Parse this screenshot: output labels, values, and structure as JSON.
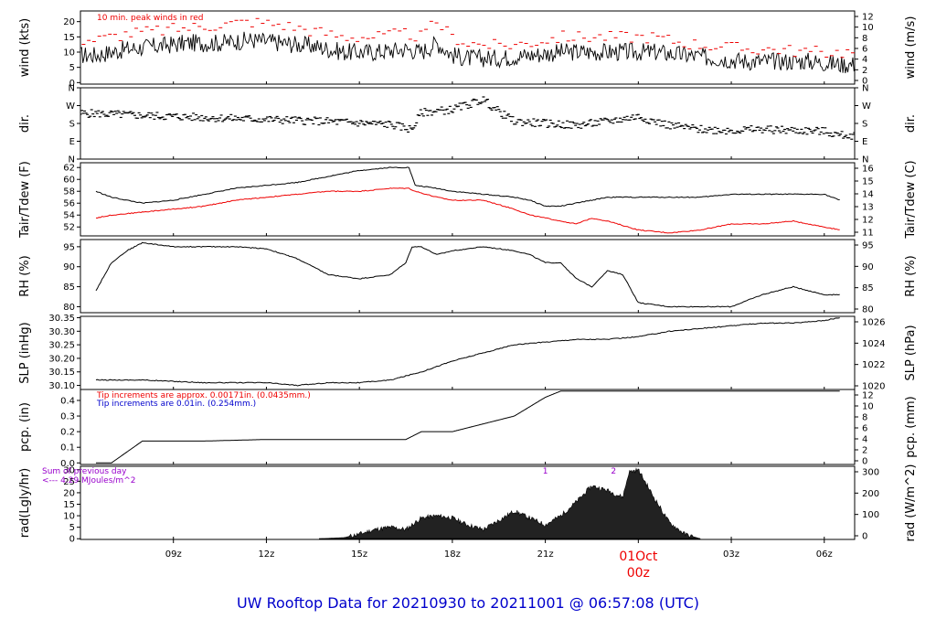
{
  "footer_title": "UW Rooftop Data for 20210930  to  20211001 @ 06:57:08  (UTC)",
  "colors": {
    "footer": "#0000cc",
    "red": "#ee0000",
    "blue": "#0000cc",
    "purple": "#9900cc",
    "line": "#000000"
  },
  "chart_data": [
    {
      "type": "line",
      "id": "wind",
      "ylabel": "wind (kts)",
      "ylabel_right": "wind (m/s)",
      "yticks": [
        0,
        5,
        10,
        15,
        20
      ],
      "yticks_right": [
        0,
        2,
        4,
        6,
        8,
        10,
        12
      ],
      "ylim": [
        -0.5,
        23.5
      ],
      "annotation": "10 min. peak winds in red",
      "x": [
        6.5,
        7.5,
        8.5,
        9.5,
        10.5,
        11.5,
        12.5,
        13.5,
        14.5,
        15.5,
        16.5,
        17,
        17.5,
        18,
        18.5,
        19.5,
        20.5,
        21.5,
        22.5,
        23.5,
        24.5,
        25.5,
        26.5,
        27.5,
        28.5,
        29.5,
        30.5
      ],
      "series": [
        {
          "values": [
            9,
            11,
            12,
            13,
            13,
            14,
            13,
            12,
            10,
            10,
            11,
            10,
            13,
            9,
            8,
            8,
            9,
            10,
            10,
            10,
            10,
            9,
            8,
            7,
            7,
            7,
            6
          ]
        },
        {
          "values": [
            14,
            16,
            17,
            18,
            19,
            20,
            19,
            17,
            15,
            15,
            16,
            15,
            20,
            15,
            13,
            12,
            13,
            15,
            15,
            15,
            15,
            13,
            12,
            11,
            11,
            10,
            10
          ]
        }
      ]
    },
    {
      "type": "scatter",
      "id": "dir",
      "ylabel": "dir.",
      "ylabel_right": "dir.",
      "ytick_labels": [
        "N",
        "E",
        "S",
        "W",
        "N"
      ],
      "ytick_values": [
        0,
        90,
        180,
        270,
        360
      ],
      "ylim": [
        0,
        360
      ],
      "x": [
        6.5,
        8,
        10,
        12,
        14,
        16,
        16.7,
        17,
        18,
        18.8,
        19,
        19.5,
        20,
        21,
        22,
        23,
        24,
        25,
        26,
        27,
        28,
        29,
        30,
        30.5
      ],
      "series": [
        {
          "values": [
            230,
            220,
            210,
            200,
            190,
            175,
            150,
            235,
            250,
            290,
            300,
            240,
            190,
            180,
            170,
            190,
            215,
            170,
            150,
            145,
            150,
            145,
            140,
            120
          ]
        }
      ]
    },
    {
      "type": "line",
      "id": "temp",
      "ylabel": "Tair/Tdew (F)",
      "ylabel_right": "Tair/Tdew (C)",
      "yticks": [
        52,
        54,
        56,
        58,
        60,
        62
      ],
      "yticks_right": [
        11,
        12,
        13,
        14,
        15,
        16
      ],
      "ylim": [
        50.5,
        62.8
      ],
      "x": [
        6.5,
        7,
        8,
        9,
        10,
        11,
        12,
        13,
        14,
        15,
        16,
        16.6,
        16.8,
        17.5,
        18,
        19,
        20,
        20.5,
        21,
        21.5,
        22,
        22.5,
        23,
        24,
        25,
        26,
        27,
        28,
        29,
        30,
        30.5
      ],
      "series": [
        {
          "values": [
            58,
            57,
            56,
            56.5,
            57.5,
            58.5,
            59,
            59.5,
            60.5,
            61.5,
            62,
            62,
            59,
            58.5,
            58,
            57.5,
            57,
            56.5,
            55.5,
            55.5,
            56,
            56.5,
            57,
            57,
            57,
            57,
            57.5,
            57.5,
            57.5,
            57.5,
            56.5
          ],
          "color": "#000000"
        },
        {
          "values": [
            53.5,
            54,
            54.5,
            55,
            55.5,
            56.5,
            57,
            57.5,
            58,
            58,
            58.5,
            58.5,
            58,
            57,
            56.5,
            56.5,
            55,
            54,
            53.5,
            53,
            52.5,
            53.5,
            53,
            51.5,
            51,
            51.5,
            52.5,
            52.5,
            53,
            52,
            51.5
          ],
          "color": "#ee0000"
        }
      ]
    },
    {
      "type": "line",
      "id": "rh",
      "ylabel": "RH (%)",
      "ylabel_right": "RH (%)",
      "yticks": [
        80,
        85,
        90,
        95
      ],
      "yticks_right": [
        80,
        85,
        90,
        95
      ],
      "ylim": [
        78.5,
        96.8
      ],
      "x": [
        6.5,
        7,
        7.5,
        8,
        9,
        10,
        11,
        12,
        13,
        14,
        15,
        16,
        16.5,
        16.7,
        17,
        17.5,
        18,
        19,
        20,
        20.5,
        21,
        21.5,
        22,
        22.5,
        23,
        23.5,
        24,
        25,
        26,
        27,
        28,
        29,
        30,
        30.5
      ],
      "series": [
        {
          "values": [
            84,
            91,
            94,
            96,
            95,
            95,
            95,
            94.5,
            92,
            88,
            87,
            88,
            91,
            95,
            95,
            93,
            94,
            95,
            94,
            93,
            91,
            91,
            87,
            85,
            89,
            88,
            81,
            80,
            80,
            80,
            83,
            85,
            83,
            83
          ]
        }
      ]
    },
    {
      "type": "line",
      "id": "slp",
      "ylabel": "SLP (inHg)",
      "ylabel_right": "SLP (hPa)",
      "yticks": [
        30.1,
        30.15,
        30.2,
        30.25,
        30.3,
        30.35
      ],
      "ytick_labels": [
        "30.10",
        "30.15",
        "30.20",
        "30.25",
        "30.30",
        "30.35"
      ],
      "yticks_right": [
        1020,
        1022,
        1024,
        1026
      ],
      "ylim": [
        30.085,
        30.355
      ],
      "x": [
        6.5,
        8,
        10,
        12,
        13,
        14,
        15,
        16,
        17,
        18,
        19,
        20,
        21,
        22,
        23,
        24,
        25,
        26,
        27,
        28,
        29,
        30,
        30.5
      ],
      "series": [
        {
          "values": [
            30.12,
            30.12,
            30.11,
            30.11,
            30.1,
            30.11,
            30.11,
            30.12,
            30.15,
            30.19,
            30.22,
            30.25,
            30.26,
            30.27,
            30.27,
            30.28,
            30.3,
            30.31,
            30.32,
            30.33,
            30.33,
            30.34,
            30.35
          ]
        }
      ]
    },
    {
      "type": "line",
      "id": "pcp",
      "ylabel": "pcp. (in)",
      "ylabel_right": "pcp. (mm)",
      "yticks": [
        0.0,
        0.1,
        0.2,
        0.3,
        0.4
      ],
      "ytick_labels": [
        "0.0",
        "0.1",
        "0.2",
        "0.3",
        "0.4"
      ],
      "yticks_right": [
        0,
        2,
        4,
        6,
        8,
        10,
        12
      ],
      "ylim": [
        -0.01,
        0.47
      ],
      "annotations": [
        "Tip increments are approx. 0.00171in. (0.0435mm.)",
        "Tip increments are 0.01in. (0.254mm.)"
      ],
      "x": [
        6.5,
        7,
        8,
        10,
        12,
        14,
        16,
        16.5,
        17,
        18,
        19,
        20,
        21,
        21.5,
        22,
        30.5
      ],
      "series": [
        {
          "values": [
            0.0,
            0.0,
            0.14,
            0.14,
            0.15,
            0.15,
            0.15,
            0.15,
            0.2,
            0.2,
            0.25,
            0.3,
            0.42,
            0.46,
            0.46,
            0.46
          ]
        }
      ]
    },
    {
      "type": "area",
      "id": "rad",
      "ylabel": "rad(Lgly/hr)",
      "ylabel_right": "rad (W/m^2)",
      "yticks": [
        0,
        5,
        10,
        15,
        20,
        25,
        30
      ],
      "yticks_right": [
        0,
        100,
        200,
        300
      ],
      "ylim": [
        -0.3,
        31.5
      ],
      "annotations": [
        "Sum of previous day",
        "<--- 4.29 MJoules/m^2"
      ],
      "markers": [
        "1",
        "2"
      ],
      "marker_x": [
        21,
        23.2
      ],
      "x": [
        13.7,
        14.5,
        15,
        15.5,
        16,
        16.5,
        17,
        17.5,
        18,
        18.5,
        19,
        19.5,
        20,
        20.5,
        21,
        21.5,
        22,
        22.5,
        23,
        23.5,
        23.7,
        24,
        24.5,
        25,
        25.5,
        26
      ],
      "series": [
        {
          "values": [
            0,
            0.5,
            2,
            4,
            5,
            4,
            9,
            10,
            9,
            6,
            4,
            8,
            12,
            9,
            6,
            10,
            16,
            23,
            21,
            18,
            29,
            30,
            18,
            7,
            2,
            0
          ]
        }
      ]
    }
  ],
  "x_axis": {
    "tick_labels": [
      "09z",
      "12z",
      "15z",
      "18z",
      "21z",
      "03z",
      "06z"
    ],
    "tick_values": [
      9,
      12,
      15,
      18,
      21,
      27,
      30
    ],
    "date_label": "01Oct",
    "date_sub": "00z",
    "date_value": 24,
    "xlim": [
      6.0,
      30.98
    ]
  }
}
